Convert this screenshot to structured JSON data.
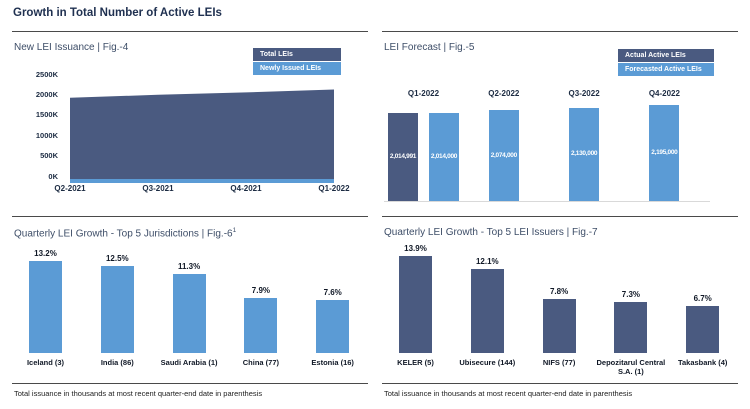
{
  "header": {
    "title": "Growth in Total Number of Active LEIs"
  },
  "colors": {
    "navy": "#4A5A80",
    "blue": "#5B9BD5"
  },
  "panels": {
    "fig4": {
      "title": "New LEI Issuance | Fig.-4",
      "legend": [
        "Total LEIs",
        "Newly Issued LEIs"
      ]
    },
    "fig5": {
      "title": "LEI Forecast | Fig.-5",
      "legend": [
        "Actual Active LEIs",
        "Forecasted Active LEIs"
      ]
    },
    "fig6": {
      "title": "Quarterly LEI Growth - Top 5 Jurisdictions | Fig.-6",
      "title_sup": "1",
      "footnote": "Total issuance in thousands at most recent quarter-end date in parenthesis"
    },
    "fig7": {
      "title": "Quarterly LEI Growth - Top 5 LEI Issuers | Fig.-7",
      "footnote": "Total issuance in thousands at most recent quarter-end date in parenthesis"
    }
  },
  "chart_data": [
    {
      "id": "fig4",
      "type": "area",
      "title": "New LEI Issuance | Fig.-4",
      "x": [
        "Q2-2021",
        "Q3-2021",
        "Q4-2021",
        "Q1-2022"
      ],
      "y_ticks": [
        "2500K",
        "2000K",
        "1500K",
        "1000K",
        "500K",
        "0K"
      ],
      "ylim": [
        0,
        2500000
      ],
      "legend_position": "top-right",
      "grid": false,
      "series": [
        {
          "name": "Total LEIs",
          "color": "navy",
          "values": [
            1920000,
            1990000,
            2050000,
            2120000
          ]
        },
        {
          "name": "Newly Issued LEIs",
          "color": "blue",
          "values": [
            45000,
            48000,
            52000,
            55000
          ]
        }
      ]
    },
    {
      "id": "fig5",
      "type": "bar",
      "title": "LEI Forecast | Fig.-5",
      "categories": [
        "Q1-2022",
        "Q2-2022",
        "Q3-2022",
        "Q4-2022"
      ],
      "legend_position": "top-right",
      "grid": false,
      "series": [
        {
          "name": "Actual Active LEIs",
          "color": "navy",
          "values": [
            2014991,
            null,
            null,
            null
          ],
          "labels": [
            "2,014,991",
            null,
            null,
            null
          ]
        },
        {
          "name": "Forecasted Active LEIs",
          "color": "blue",
          "values": [
            2014000,
            2074000,
            2130000,
            2195000
          ],
          "labels": [
            "2,014,000",
            "2,074,000",
            "2,130,000",
            "2,195,000"
          ]
        }
      ]
    },
    {
      "id": "fig6",
      "type": "bar",
      "title": "Quarterly LEI Growth - Top 5 Jurisdictions | Fig.-6",
      "categories": [
        "Iceland (3)",
        "India (86)",
        "Saudi Arabia (1)",
        "China (77)",
        "Estonia (16)"
      ],
      "values": [
        13.2,
        12.5,
        11.3,
        7.9,
        7.6
      ],
      "labels": [
        "13.2%",
        "12.5%",
        "11.3%",
        "7.9%",
        "7.6%"
      ],
      "bar_color": "blue",
      "ylabel": "",
      "xlabel": "",
      "grid": false
    },
    {
      "id": "fig7",
      "type": "bar",
      "title": "Quarterly LEI Growth - Top 5 LEI Issuers | Fig.-7",
      "categories": [
        "KELER (5)",
        "Ubisecure (144)",
        "NIFS (77)",
        "Depozitarul Central S.A. (1)",
        "Takasbank (4)"
      ],
      "values": [
        13.9,
        12.1,
        7.8,
        7.3,
        6.7
      ],
      "labels": [
        "13.9%",
        "12.1%",
        "7.8%",
        "7.3%",
        "6.7%"
      ],
      "bar_color": "navy",
      "ylabel": "",
      "xlabel": "",
      "grid": false
    }
  ]
}
